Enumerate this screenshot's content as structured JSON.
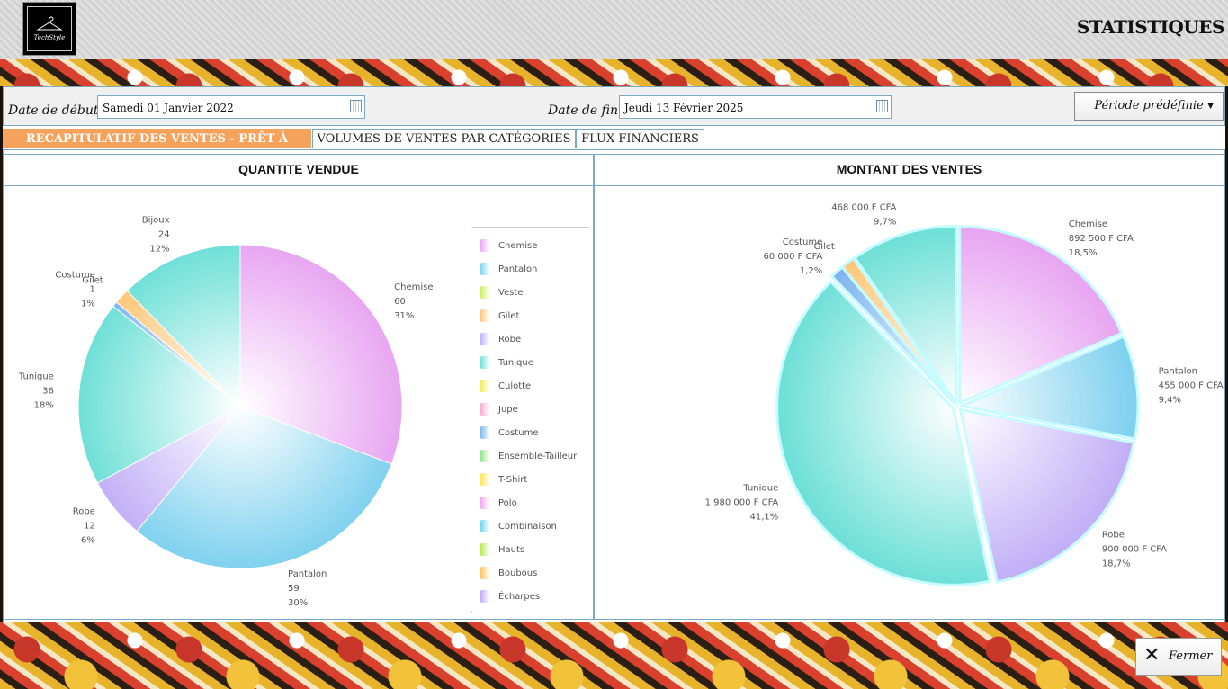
{
  "header": {
    "title": "STATISTIQUES",
    "logo_text": "TechStyle"
  },
  "dates": {
    "start_label": "Date de début :",
    "start_value": "Samedi 01 Janvier 2022",
    "end_label": "Date de fin :",
    "end_value": "Jeudi 13 Février 2025",
    "preset_label": "Période prédéfinie"
  },
  "tabs": [
    {
      "label": "RECAPITULATIF DES VENTES - PRÊT À PORTER",
      "active": true
    },
    {
      "label": "VOLUMES DE VENTES PAR CATÉGORIES",
      "active": false
    },
    {
      "label": "FLUX FINANCIERS",
      "active": false
    }
  ],
  "legend": [
    {
      "label": "Chemise",
      "color": "#e8a6f2"
    },
    {
      "label": "Pantalon",
      "color": "#7fd1ef"
    },
    {
      "label": "Veste",
      "color": "#c9ef5a"
    },
    {
      "label": "Gilet",
      "color": "#ffc77a"
    },
    {
      "label": "Robe",
      "color": "#c2b0f7"
    },
    {
      "label": "Tunique",
      "color": "#6fe0d8"
    },
    {
      "label": "Culotte",
      "color": "#eaf04f"
    },
    {
      "label": "Jupe",
      "color": "#f8a8d2"
    },
    {
      "label": "Costume",
      "color": "#7fb6ef"
    },
    {
      "label": "Ensemble-Tailleur",
      "color": "#8fe48a"
    },
    {
      "label": "T-Shirt",
      "color": "#ffe34d"
    },
    {
      "label": "Polo",
      "color": "#f2a6ec"
    },
    {
      "label": "Combinaison",
      "color": "#6fd6ef"
    },
    {
      "label": "Hauts",
      "color": "#b6e84c"
    },
    {
      "label": "Boubous",
      "color": "#ffc45a"
    },
    {
      "label": "Écharpes",
      "color": "#c1a8f5"
    }
  ],
  "chart_data": [
    {
      "type": "pie",
      "title": "QUANTITE VENDUE",
      "categories": [
        "Chemise",
        "Pantalon",
        "Robe",
        "Tunique",
        "Costume",
        "Gilet",
        "Bijoux"
      ],
      "values": [
        60,
        59,
        12,
        36,
        1,
        3,
        24
      ],
      "percents": [
        "31%",
        "30%",
        "6%",
        "18%",
        "1%",
        "",
        "12%"
      ],
      "value_labels": [
        "60",
        "59",
        "12",
        "36",
        "1",
        "",
        "24"
      ],
      "colors": [
        "#e8a6f2",
        "#7fd1ef",
        "#c2b0f7",
        "#6fe0d8",
        "#7fb6ef",
        "#ffc77a",
        "#6fe0d8"
      ]
    },
    {
      "type": "pie",
      "title": "MONTANT DES VENTES",
      "categories": [
        "Chemise",
        "Pantalon",
        "Robe",
        "Tunique",
        "Costume",
        "Gilet",
        ""
      ],
      "values": [
        892500,
        455000,
        900000,
        1980000,
        60000,
        60000,
        468000
      ],
      "percents": [
        "18,5%",
        "9,4%",
        "18,7%",
        "41,1%",
        "1,2%",
        "",
        "9,7%"
      ],
      "value_labels": [
        "892 500 F CFA",
        "455 000 F CFA",
        "900 000 F CFA",
        "1 980 000 F CFA",
        "60 000 F CFA",
        "",
        "468 000 F CFA"
      ],
      "colors": [
        "#e8a6f2",
        "#7fd1ef",
        "#c2b0f7",
        "#6fe0d8",
        "#7fb6ef",
        "#ffc77a",
        "#6fe0d8"
      ]
    }
  ],
  "footer": {
    "close_label": "Fermer"
  }
}
